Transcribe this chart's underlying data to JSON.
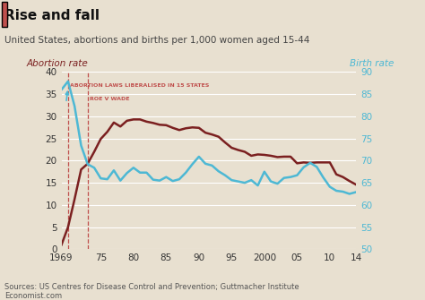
{
  "title": "Rise and fall",
  "subtitle": "United States, abortions and births per 1,000 women aged 15-44",
  "ylabel_left": "Abortion rate",
  "ylabel_right": "Birth rate",
  "source": "Sources: US Centres for Disease Control and Prevention; Guttmacher Institute",
  "credit": "Economist.com",
  "bg_color": "#e8e0d0",
  "plot_bg_color": "#e8e0d0",
  "abortion_color": "#7b2020",
  "birth_color": "#4db8d4",
  "annotation1_text": "ABORTION LAWS LIBERALISED IN 15 STATES",
  "annotation2_text": "ROE V WADE",
  "vline1_x": 1970,
  "vline2_x": 1973,
  "abortion_data": {
    "years": [
      1969,
      1970,
      1971,
      1972,
      1973,
      1974,
      1975,
      1976,
      1977,
      1978,
      1979,
      1980,
      1981,
      1982,
      1983,
      1984,
      1985,
      1986,
      1987,
      1988,
      1989,
      1990,
      1991,
      1992,
      1993,
      1994,
      1995,
      1996,
      1997,
      1998,
      1999,
      2000,
      2001,
      2002,
      2003,
      2004,
      2005,
      2006,
      2007,
      2008,
      2009,
      2010,
      2011,
      2012,
      2013,
      2014
    ],
    "values": [
      1.0,
      5.0,
      11.3,
      18.0,
      19.3,
      22.0,
      24.9,
      26.5,
      28.6,
      27.7,
      29.0,
      29.3,
      29.3,
      28.8,
      28.5,
      28.1,
      28.0,
      27.4,
      26.9,
      27.3,
      27.5,
      27.4,
      26.3,
      25.9,
      25.4,
      24.1,
      22.9,
      22.4,
      22.0,
      21.1,
      21.4,
      21.3,
      21.1,
      20.8,
      20.9,
      20.9,
      19.4,
      19.6,
      19.5,
      19.6,
      19.6,
      19.6,
      16.9,
      16.3,
      15.4,
      14.6
    ]
  },
  "birth_data": {
    "years": [
      1969,
      1970,
      1971,
      1972,
      1973,
      1974,
      1975,
      1976,
      1977,
      1978,
      1979,
      1980,
      1981,
      1982,
      1983,
      1984,
      1985,
      1986,
      1987,
      1988,
      1989,
      1990,
      1991,
      1992,
      1993,
      1994,
      1995,
      1996,
      1997,
      1998,
      1999,
      2000,
      2001,
      2002,
      2003,
      2004,
      2005,
      2006,
      2007,
      2008,
      2009,
      2010,
      2011,
      2012,
      2013,
      2014
    ],
    "values": [
      86.0,
      87.9,
      82.3,
      73.4,
      69.2,
      68.4,
      66.0,
      65.8,
      67.8,
      65.5,
      67.2,
      68.4,
      67.3,
      67.3,
      65.7,
      65.5,
      66.3,
      65.4,
      65.8,
      67.3,
      69.2,
      70.9,
      69.3,
      68.9,
      67.6,
      66.7,
      65.6,
      65.3,
      65.0,
      65.6,
      64.4,
      67.5,
      65.3,
      64.8,
      66.1,
      66.3,
      66.7,
      68.5,
      69.5,
      68.6,
      66.2,
      64.1,
      63.2,
      63.0,
      62.5,
      62.9
    ]
  },
  "xlim": [
    1969,
    2014
  ],
  "ylim_left": [
    0,
    40
  ],
  "ylim_right": [
    50,
    90
  ],
  "xticks": [
    1969,
    1975,
    1980,
    1985,
    1990,
    1995,
    2000,
    2005,
    2010,
    2014
  ],
  "xticklabels": [
    "1969",
    "75",
    "80",
    "85",
    "90",
    "95",
    "2000",
    "05",
    "10",
    "14"
  ],
  "yticks_left": [
    0,
    5,
    10,
    15,
    20,
    25,
    30,
    35,
    40
  ],
  "yticks_right": [
    50,
    55,
    60,
    65,
    70,
    75,
    80,
    85,
    90
  ]
}
